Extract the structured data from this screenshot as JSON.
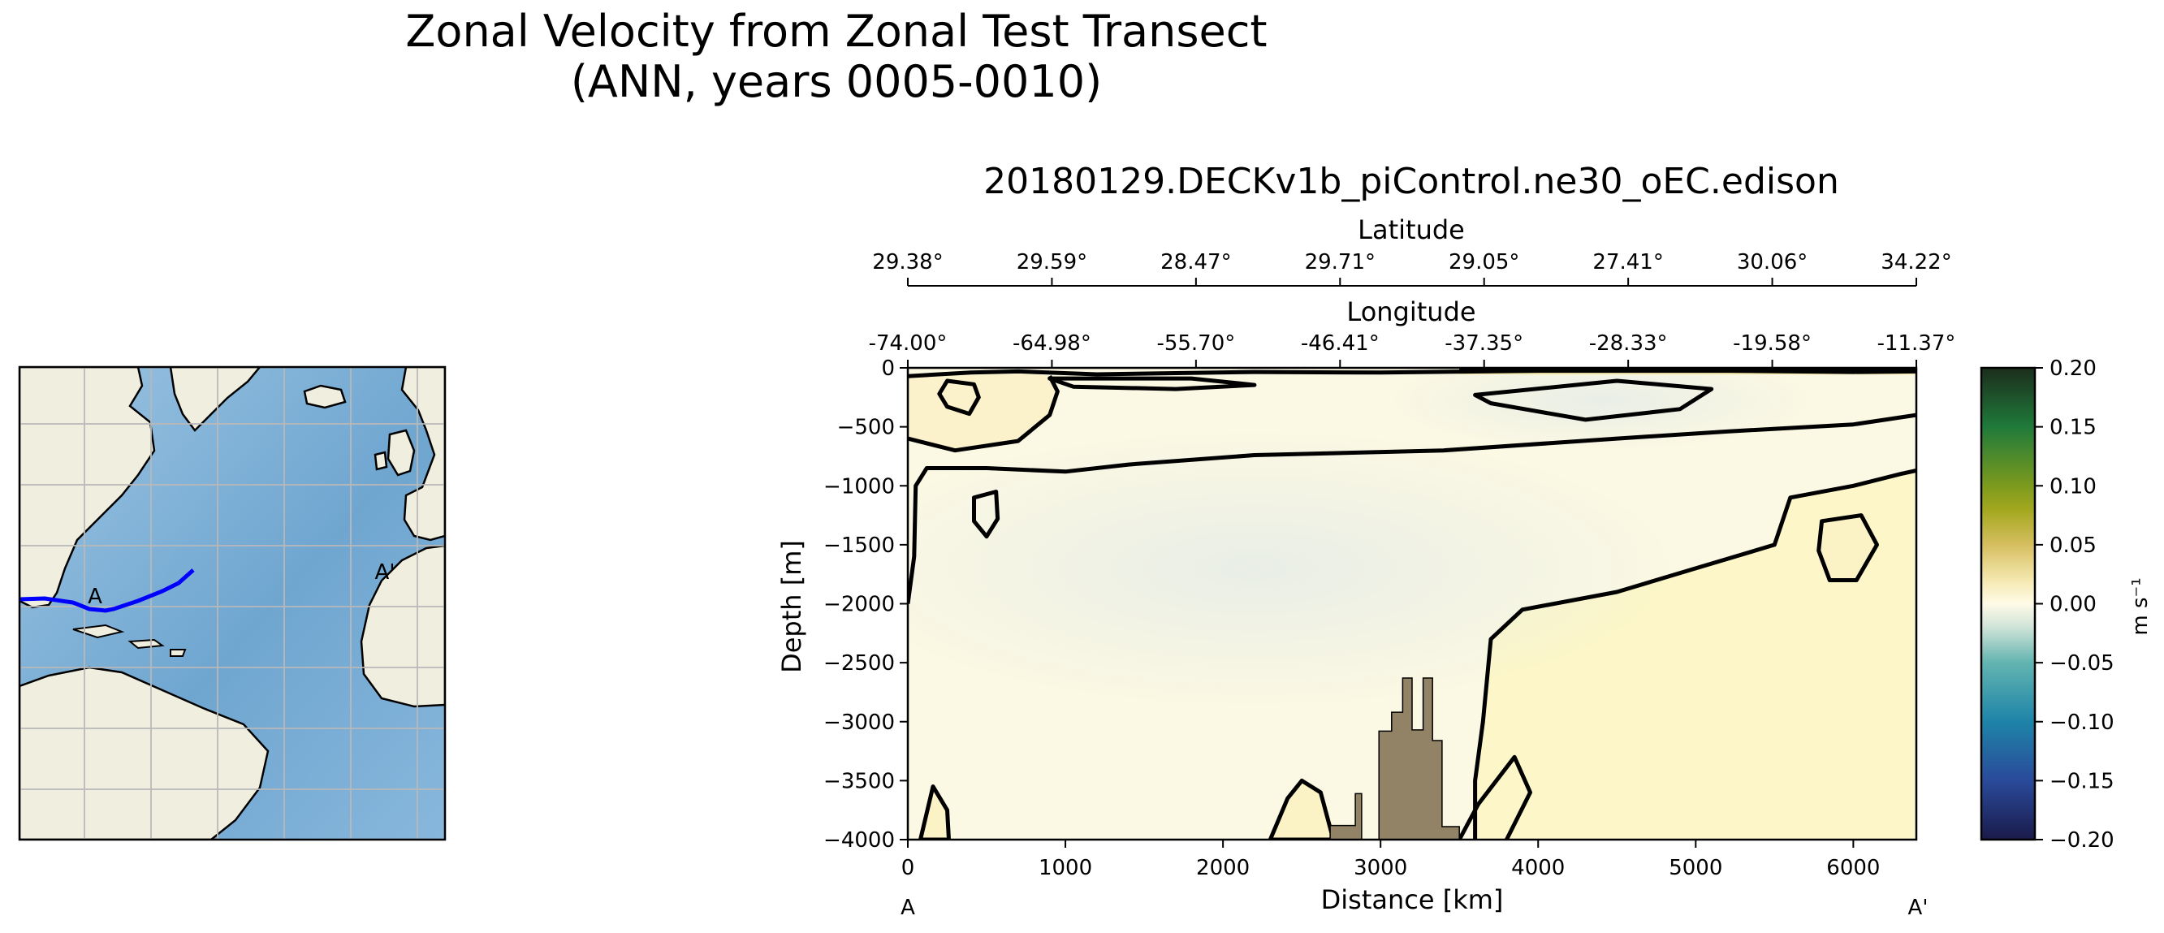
{
  "title": {
    "line1": "Zonal Velocity from Zonal Test Transect",
    "line2": "(ANN, years 0005-0010)"
  },
  "chart_data": [
    {
      "type": "map",
      "description": "North Atlantic inset map with transect line",
      "transect_color": "#0000ff",
      "labels": {
        "start": "A",
        "end": "A'"
      },
      "colors": {
        "ocean": "#7fb0d6",
        "land": "#efeedf",
        "grid": "#b8b8b8",
        "transect": "#0000ff"
      }
    },
    {
      "type": "heatmap",
      "title": "20180129.DECKv1b_piControl.ne30_oEC.edison",
      "xlabel": "Distance [km]",
      "ylabel": "Depth [m]",
      "xlim": [
        0,
        6400
      ],
      "ylim": [
        -4000,
        0
      ],
      "x_ticks": [
        0,
        1000,
        2000,
        3000,
        4000,
        5000,
        6000
      ],
      "y_ticks": [
        0,
        -500,
        -1000,
        -1500,
        -2000,
        -2500,
        -3000,
        -3500,
        -4000
      ],
      "y_tick_labels": [
        "0",
        "−500",
        "−1000",
        "−1500",
        "−2000",
        "−2500",
        "−3000",
        "−3500",
        "−4000"
      ],
      "secondary_axes": {
        "latitude": {
          "label": "Latitude",
          "ticks": [
            "29.38°",
            "29.59°",
            "28.47°",
            "29.71°",
            "29.05°",
            "27.41°",
            "30.06°",
            "34.22°"
          ]
        },
        "longitude": {
          "label": "Longitude",
          "ticks": [
            "-74.00°",
            "-64.98°",
            "-55.70°",
            "-46.41°",
            "-37.35°",
            "-28.33°",
            "-19.58°",
            "-11.37°"
          ]
        }
      },
      "secondary_tick_distances_km": [
        0,
        914.3,
        1828.6,
        2742.9,
        3657.1,
        4571.4,
        5485.7,
        6400
      ],
      "endpoint_labels": {
        "start": "A",
        "end": "A'"
      },
      "colorbar": {
        "label": "m s⁻¹",
        "range": [
          -0.2,
          0.2
        ],
        "ticks": [
          0.2,
          0.15,
          0.1,
          0.05,
          0.0,
          -0.05,
          -0.1,
          -0.15,
          -0.2
        ],
        "tick_labels": [
          "0.20",
          "0.15",
          "0.10",
          "0.05",
          "0.00",
          "−0.05",
          "−0.10",
          "−0.15",
          "−0.20"
        ],
        "stops": [
          {
            "v": -0.2,
            "c": "#1a1a4a"
          },
          {
            "v": -0.15,
            "c": "#2a4a9a"
          },
          {
            "v": -0.1,
            "c": "#1e84a8"
          },
          {
            "v": -0.05,
            "c": "#62b4b0"
          },
          {
            "v": -0.02,
            "c": "#cfe3d8"
          },
          {
            "v": 0.0,
            "c": "#fffbe8"
          },
          {
            "v": 0.02,
            "c": "#f4e8b0"
          },
          {
            "v": 0.05,
            "c": "#d6be60"
          },
          {
            "v": 0.08,
            "c": "#a2a81e"
          },
          {
            "v": 0.1,
            "c": "#7c9a1e"
          },
          {
            "v": 0.15,
            "c": "#1f7a3a"
          },
          {
            "v": 0.2,
            "c": "#1c2d1c"
          }
        ]
      },
      "field_colors": {
        "background": "#fbf8e3",
        "positive_region": "#fcf6c8",
        "negative_region": "#eef1e8",
        "strong_positive": "#f3e7ab",
        "seafloor": "#928266"
      },
      "contours_zero": [
        [
          [
            0,
            -70
          ],
          [
            400,
            -40
          ],
          [
            700,
            -30
          ],
          [
            1200,
            -55
          ],
          [
            2200,
            -35
          ],
          [
            3000,
            -40
          ],
          [
            4000,
            -25
          ],
          [
            5200,
            -25
          ],
          [
            6000,
            -35
          ],
          [
            6400,
            -30
          ]
        ],
        [
          [
            0,
            -2000
          ],
          [
            40,
            -1600
          ],
          [
            50,
            -1000
          ],
          [
            120,
            -850
          ],
          [
            500,
            -850
          ],
          [
            1000,
            -880
          ],
          [
            1400,
            -820
          ],
          [
            2200,
            -740
          ],
          [
            3400,
            -700
          ],
          [
            4500,
            -600
          ],
          [
            5200,
            -540
          ],
          [
            6000,
            -480
          ],
          [
            6400,
            -400
          ]
        ],
        [
          [
            0,
            -600
          ],
          [
            300,
            -700
          ],
          [
            700,
            -620
          ],
          [
            900,
            -400
          ],
          [
            950,
            -200
          ],
          [
            900,
            -70
          ]
        ],
        [
          [
            3600,
            -4000
          ],
          [
            3600,
            -3500
          ],
          [
            3650,
            -3000
          ],
          [
            3700,
            -2300
          ],
          [
            3900,
            -2050
          ],
          [
            4500,
            -1900
          ],
          [
            5000,
            -1700
          ],
          [
            5500,
            -1500
          ],
          [
            5600,
            -1100
          ],
          [
            6000,
            -1000
          ],
          [
            6300,
            -900
          ],
          [
            6400,
            -870
          ]
        ],
        [
          [
            3500,
            -4000
          ],
          [
            3620,
            -3700
          ],
          [
            3850,
            -3300
          ],
          [
            3950,
            -3600
          ],
          [
            3800,
            -4000
          ]
        ]
      ],
      "contours_closed": [
        [
          [
            250,
            -110
          ],
          [
            420,
            -140
          ],
          [
            450,
            -250
          ],
          [
            390,
            -390
          ],
          [
            250,
            -330
          ],
          [
            200,
            -220
          ]
        ],
        [
          [
            420,
            -1100
          ],
          [
            560,
            -1050
          ],
          [
            570,
            -1280
          ],
          [
            500,
            -1430
          ],
          [
            420,
            -1300
          ]
        ],
        [
          [
            900,
            -90
          ],
          [
            1800,
            -90
          ],
          [
            2200,
            -145
          ],
          [
            1700,
            -180
          ],
          [
            1050,
            -160
          ]
        ],
        [
          [
            3600,
            -230
          ],
          [
            4500,
            -110
          ],
          [
            5100,
            -180
          ],
          [
            4900,
            -350
          ],
          [
            4300,
            -440
          ],
          [
            3700,
            -300
          ]
        ],
        [
          [
            5800,
            -1300
          ],
          [
            6050,
            -1250
          ],
          [
            6150,
            -1500
          ],
          [
            6020,
            -1800
          ],
          [
            5850,
            -1800
          ],
          [
            5780,
            -1550
          ]
        ],
        [
          [
            2300,
            -4000
          ],
          [
            2410,
            -3650
          ],
          [
            2500,
            -3500
          ],
          [
            2620,
            -3600
          ],
          [
            2700,
            -4000
          ]
        ],
        [
          [
            80,
            -4000
          ],
          [
            160,
            -3550
          ],
          [
            250,
            -3750
          ],
          [
            260,
            -4000
          ]
        ]
      ],
      "seafloor_profile": [
        [
          2680,
          -4000
        ],
        [
          2680,
          -3880
        ],
        [
          2840,
          -3880
        ],
        [
          2840,
          -3610
        ],
        [
          2880,
          -3610
        ],
        [
          2880,
          -4000
        ],
        [
          2990,
          -4000
        ],
        [
          2990,
          -3080
        ],
        [
          3070,
          -3080
        ],
        [
          3070,
          -2920
        ],
        [
          3140,
          -2920
        ],
        [
          3140,
          -2630
        ],
        [
          3200,
          -2630
        ],
        [
          3200,
          -3070
        ],
        [
          3270,
          -3070
        ],
        [
          3270,
          -2630
        ],
        [
          3330,
          -2630
        ],
        [
          3330,
          -3160
        ],
        [
          3390,
          -3160
        ],
        [
          3390,
          -3890
        ],
        [
          3500,
          -3890
        ],
        [
          3500,
          -4000
        ]
      ]
    }
  ]
}
